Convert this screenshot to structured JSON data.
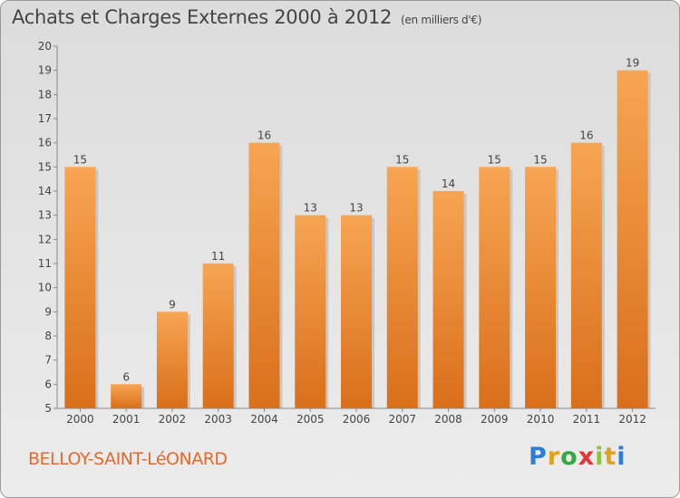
{
  "title": "Achats et Charges Externes 2000 à 2012",
  "unit_note": "(en milliers d'€)",
  "city": "BELLOY-SAINT-LéONARD",
  "brand": "Proxiti",
  "colors": {
    "bar_top": "#f7a552",
    "bar_bottom": "#d96f1a",
    "city": "#e5692a"
  },
  "chart_data": {
    "type": "bar",
    "title": "Achats et Charges Externes 2000 à 2012",
    "subtitle": "(en milliers d'€)",
    "categories": [
      "2000",
      "2001",
      "2002",
      "2003",
      "2004",
      "2005",
      "2006",
      "2007",
      "2008",
      "2009",
      "2010",
      "2011",
      "2012"
    ],
    "values": [
      15,
      6,
      9,
      11,
      16,
      13,
      13,
      15,
      14,
      15,
      15,
      16,
      19
    ],
    "ylim": [
      5,
      20
    ],
    "yticks": [
      5,
      6,
      7,
      8,
      9,
      10,
      11,
      12,
      13,
      14,
      15,
      16,
      17,
      18,
      19,
      20
    ],
    "grid": false,
    "data_labels": true
  }
}
